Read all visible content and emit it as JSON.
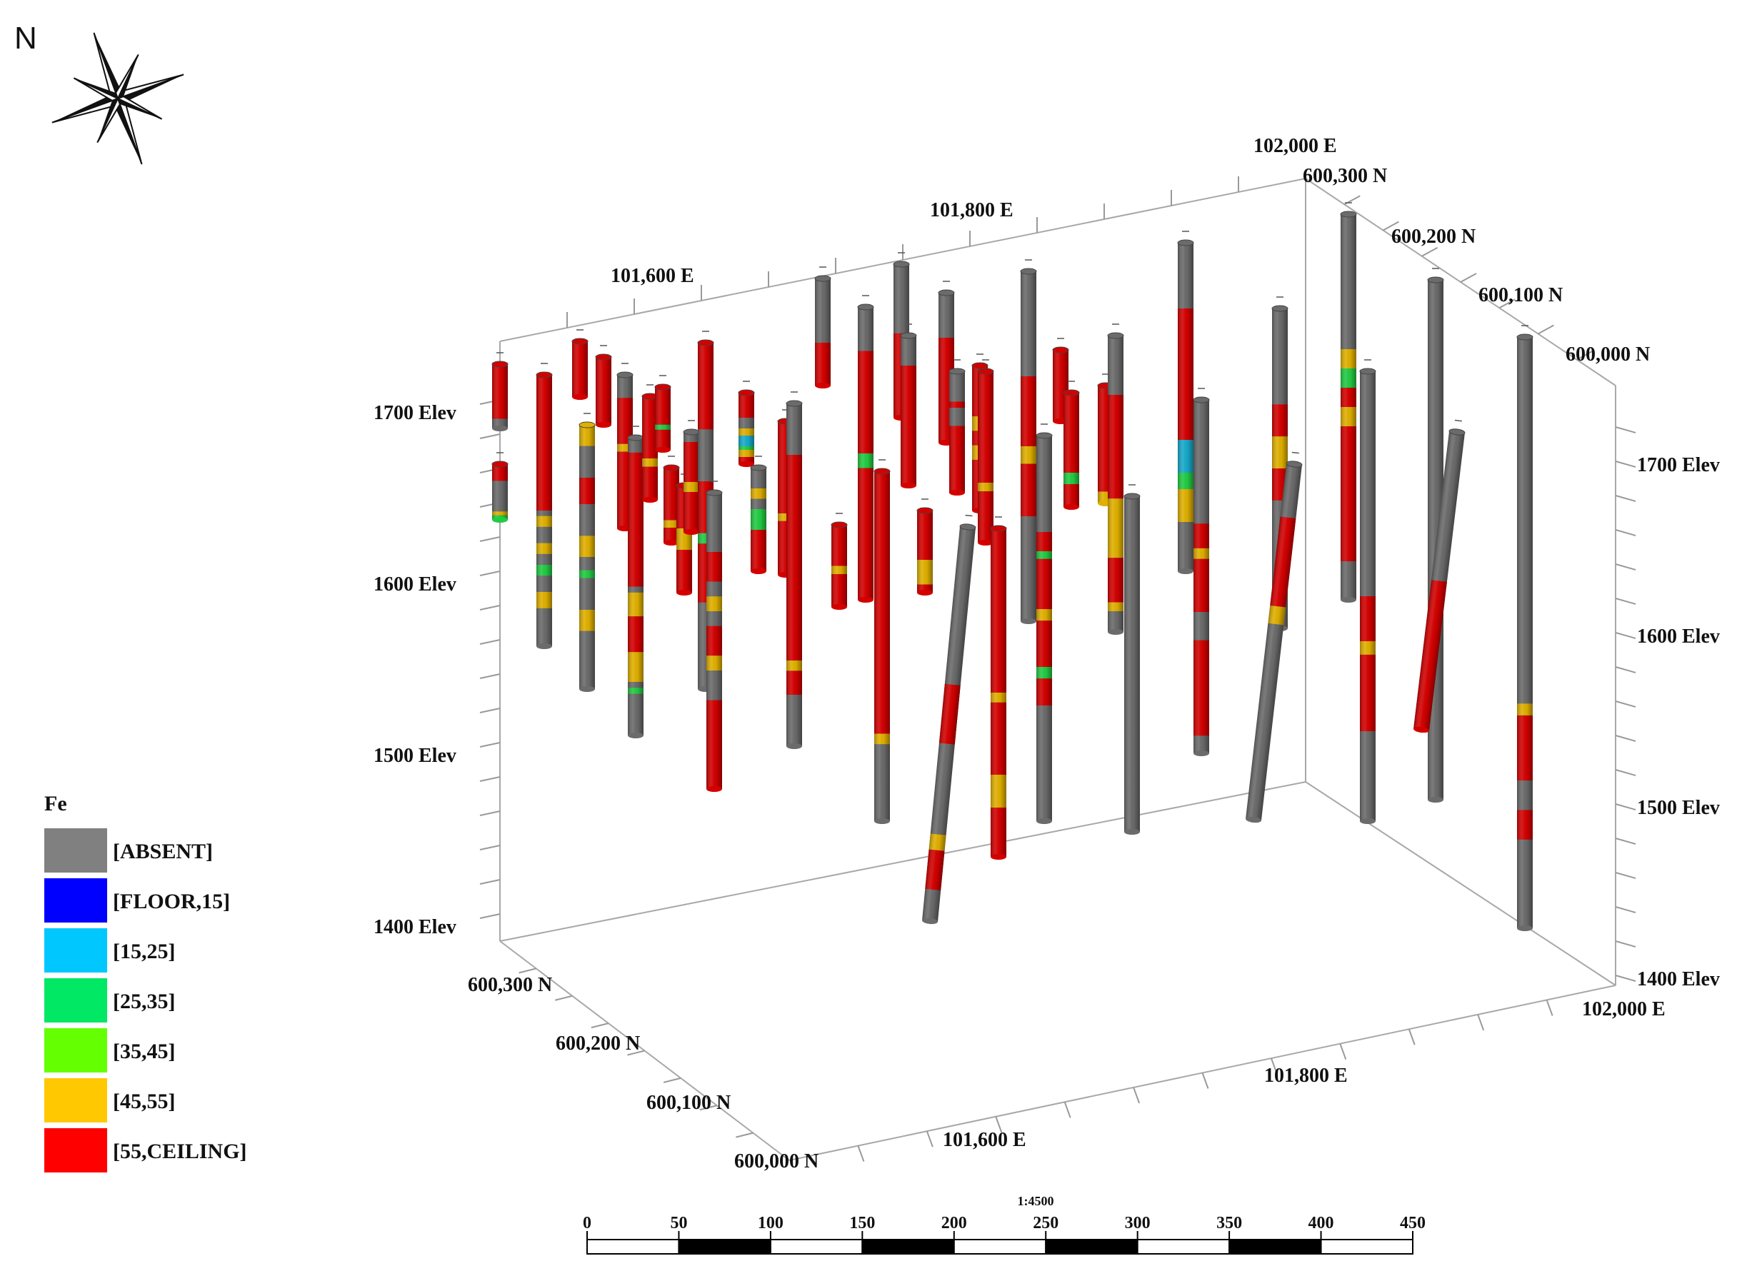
{
  "north_label": "N",
  "legend": {
    "title": "Fe",
    "items": [
      {
        "label": "[ABSENT]",
        "color": "#808080"
      },
      {
        "label": "[FLOOR,15]",
        "color": "#0000ff"
      },
      {
        "label": "[15,25]",
        "color": "#00c8ff"
      },
      {
        "label": "[25,35]",
        "color": "#00e864"
      },
      {
        "label": "[35,45]",
        "color": "#64ff00"
      },
      {
        "label": "[45,55]",
        "color": "#ffc800"
      },
      {
        "label": "[55,CEILING]",
        "color": "#ff0000"
      }
    ]
  },
  "scale_bar": {
    "ratio": "1:4500",
    "ticks": [
      "0",
      "50",
      "100",
      "150",
      "200",
      "250",
      "300",
      "350",
      "400",
      "450"
    ]
  },
  "axes": {
    "top_easting": [
      "101,600 E",
      "101,800 E",
      "102,000 E"
    ],
    "bottom_easting": [
      "101,600 E",
      "101,800 E",
      "102,000 E"
    ],
    "right_northing": [
      "600,300 N",
      "600,200 N",
      "600,100 N",
      "600,000 N"
    ],
    "left_northing": [
      "600,300 N",
      "600,200 N",
      "600,100 N",
      "600,000 N"
    ],
    "left_elev": [
      "1700 Elev",
      "1600 Elev",
      "1500 Elev",
      "1400 Elev"
    ],
    "right_elev": [
      "1700 Elev",
      "1600 Elev",
      "1500 Elev",
      "1400 Elev"
    ]
  },
  "colors": {
    "absent": "#6b6b6b",
    "high": "#d40000",
    "mid": "#e0b000",
    "green": "#22cc44",
    "cyan": "#18aacc",
    "box": "#a8a8a8"
  }
}
